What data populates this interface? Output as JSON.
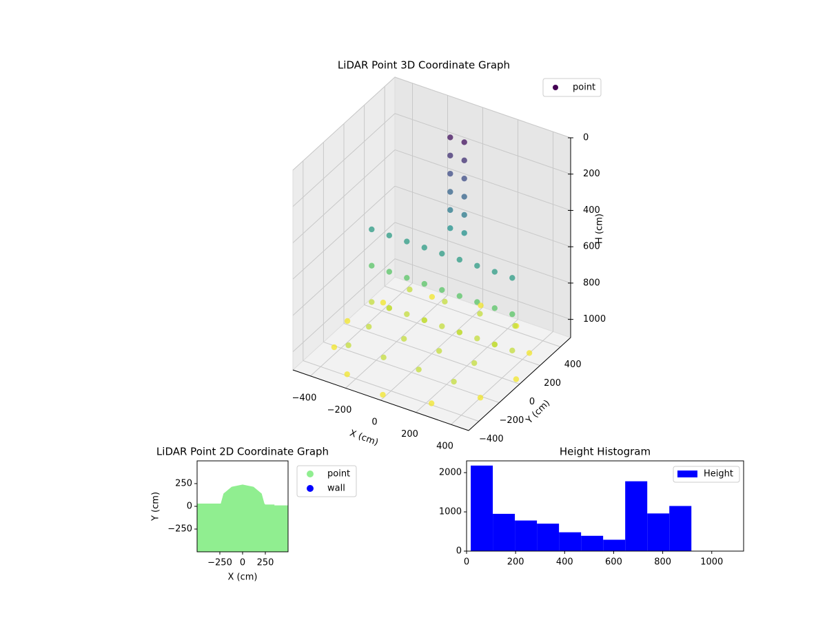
{
  "chart_data": [
    {
      "type": "scatter3d",
      "title": "LiDAR Point 3D Coordinate Graph",
      "xlabel": "X (cm)",
      "ylabel": "Y (cm)",
      "zlabel": "H (cm)",
      "cmap": "viridis",
      "legend": "upper right",
      "xlim": [
        -500,
        500
      ],
      "ylim": [
        -500,
        500
      ],
      "zlim": [
        1100,
        0
      ],
      "xticks": [
        {
          "value": -400,
          "label": "−400"
        },
        {
          "value": -200,
          "label": "−200"
        },
        0,
        200,
        400
      ],
      "yticks": [
        {
          "value": -400,
          "label": "−400"
        },
        {
          "value": -200,
          "label": "−200"
        },
        0,
        200,
        400
      ],
      "zticks": [
        0,
        200,
        400,
        600,
        800,
        1000
      ],
      "series": [
        {
          "name": "point",
          "color": "#440154",
          "x": [
            -40,
            40,
            -40,
            40,
            -40,
            40,
            -40,
            40,
            -40,
            40,
            -40,
            40,
            -400,
            -300,
            -200,
            -100,
            0,
            100,
            200,
            300,
            400,
            -400,
            -300,
            -200,
            -100,
            0,
            100,
            200,
            300,
            400,
            -400,
            -300,
            -200,
            -100,
            0,
            100,
            200,
            300,
            400,
            480,
            416,
            240,
            0,
            -240,
            -416,
            -480,
            -416,
            -240,
            0,
            240,
            416,
            -300,
            -100,
            100,
            300,
            -300,
            -100,
            100,
            300,
            -300,
            -100,
            100,
            300,
            -300,
            -100,
            100,
            300
          ],
          "y": [
            250,
            250,
            250,
            250,
            250,
            250,
            250,
            250,
            250,
            250,
            250,
            250,
            100,
            100,
            100,
            100,
            100,
            100,
            100,
            100,
            100,
            100,
            100,
            100,
            100,
            100,
            100,
            100,
            100,
            100,
            100,
            100,
            100,
            100,
            100,
            100,
            100,
            100,
            100,
            0,
            240,
            416,
            480,
            416,
            240,
            0,
            -240,
            -416,
            -480,
            -416,
            -240,
            -300,
            -300,
            -300,
            -300,
            -100,
            -100,
            -100,
            -100,
            100,
            100,
            100,
            100,
            300,
            300,
            300,
            300
          ],
          "h": [
            50,
            50,
            150,
            150,
            250,
            250,
            350,
            350,
            450,
            450,
            550,
            550,
            600,
            600,
            600,
            600,
            600,
            600,
            600,
            600,
            600,
            800,
            800,
            800,
            800,
            800,
            800,
            800,
            800,
            800,
            1000,
            1000,
            1000,
            1000,
            1000,
            1000,
            1000,
            1000,
            1000,
            1080,
            1080,
            1080,
            1080,
            1080,
            1080,
            1080,
            1080,
            1080,
            1080,
            1080,
            1080,
            1000,
            1000,
            1000,
            1000,
            1000,
            1000,
            1000,
            1000,
            1000,
            1000,
            1000,
            1000,
            1000,
            1000,
            1000,
            1000
          ]
        }
      ]
    },
    {
      "type": "scatter",
      "title": "LiDAR Point 2D Coordinate Graph",
      "xlabel": "X (cm)",
      "ylabel": "Y (cm)",
      "legend": "outside right",
      "xlim": [
        -500,
        500
      ],
      "ylim": [
        -500,
        500
      ],
      "xticks": [
        {
          "value": -250,
          "label": "−250"
        },
        0,
        250
      ],
      "yticks": [
        {
          "value": -250,
          "label": "−250"
        },
        0,
        250
      ],
      "series": [
        {
          "name": "point",
          "color": "#90ee90",
          "x": [
            -500,
            -240,
            -210,
            -120,
            0,
            120,
            210,
            240,
            250,
            350,
            350,
            500,
            500,
            -500
          ],
          "y": [
            30,
            30,
            140,
            215,
            240,
            215,
            140,
            30,
            20,
            20,
            10,
            10,
            -500,
            -500
          ]
        },
        {
          "name": "wall",
          "color": "#0000ff",
          "x": [],
          "y": []
        }
      ]
    },
    {
      "type": "histogram",
      "title": "Height Histogram",
      "legend": "upper right",
      "series": [
        {
          "name": "Height",
          "color": "#0000ff",
          "bins": [
            17,
            107,
            197,
            287,
            377,
            467,
            557,
            647,
            737,
            827,
            917
          ],
          "values": [
            2180,
            950,
            780,
            700,
            480,
            390,
            290,
            1780,
            960,
            1150
          ]
        }
      ],
      "xlim": [
        0,
        1130
      ],
      "ylim": [
        0,
        2300
      ],
      "xticks": [
        0,
        200,
        400,
        600,
        800,
        1000
      ],
      "yticks": [
        0,
        1000,
        2000
      ]
    }
  ]
}
